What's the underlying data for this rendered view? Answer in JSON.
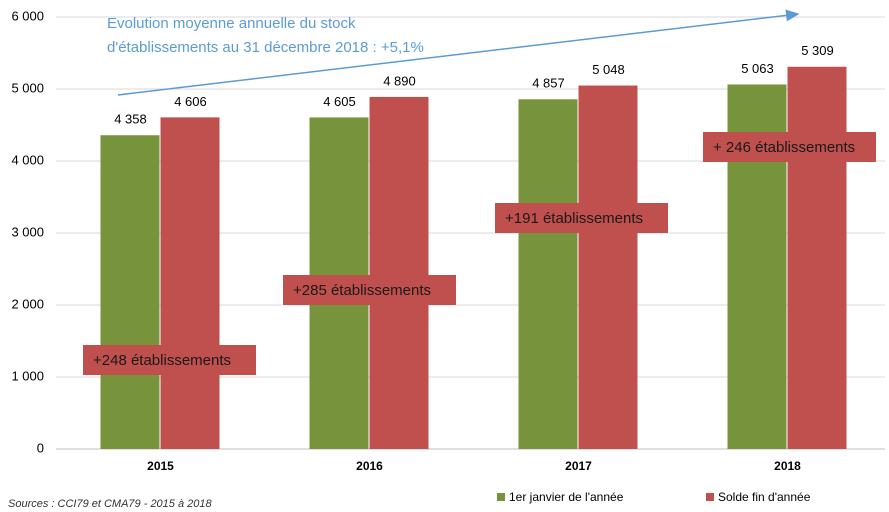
{
  "chart_data": {
    "type": "bar",
    "categories": [
      "2015",
      "2016",
      "2017",
      "2018"
    ],
    "series": [
      {
        "name": "1er janvier de l'année",
        "color": "#77933c",
        "values": [
          4358,
          4605,
          4857,
          5063
        ],
        "value_labels": [
          "4 358",
          "4 605",
          "4 857",
          "5 063"
        ]
      },
      {
        "name": "Solde fin d'année",
        "color": "#c0504d",
        "values": [
          4606,
          4890,
          5048,
          5309
        ],
        "value_labels": [
          "4 606",
          "4 890",
          "5 048",
          "5 309"
        ]
      }
    ],
    "ylim": [
      0,
      6000
    ],
    "yticks": [
      {
        "value": 0,
        "label": "0"
      },
      {
        "value": 1000,
        "label": "1 000"
      },
      {
        "value": 2000,
        "label": "2 000"
      },
      {
        "value": 3000,
        "label": "3 000"
      },
      {
        "value": 4000,
        "label": "4 000"
      },
      {
        "value": 5000,
        "label": "5 000"
      },
      {
        "value": 6000,
        "label": "6 000"
      }
    ],
    "grid": true,
    "trend_text": [
      "Evolution moyenne annuelle du stock",
      "d'établissements au 31 décembre 2018 : +5,1%"
    ],
    "annotations": [
      "+248 établissements",
      "+285 établissements",
      "+191 établissements",
      "+ 246 établissements"
    ],
    "source": "Sources : CCI79 et CMA79 - 2015 à 2018"
  }
}
